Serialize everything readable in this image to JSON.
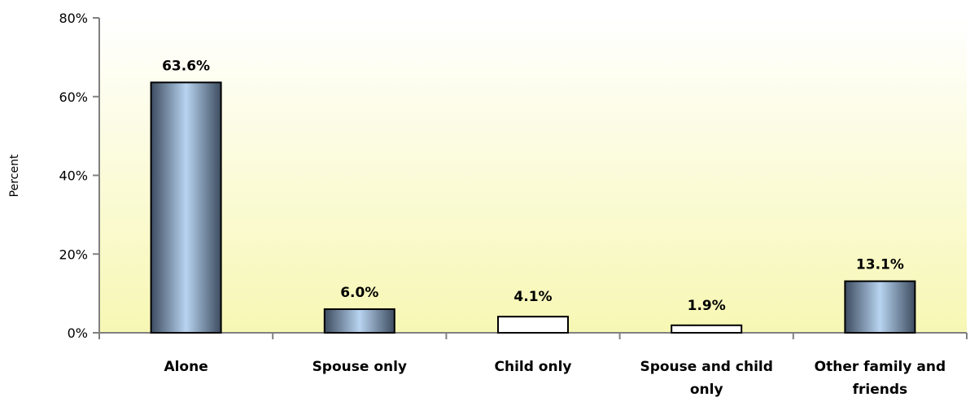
{
  "chart_data": {
    "type": "bar",
    "title": "",
    "xlabel": "",
    "ylabel": "Percent",
    "categories": [
      "Alone",
      "Spouse only",
      "Child only",
      "Spouse and child only",
      "Other family and friends"
    ],
    "category_label_lines": [
      [
        "Alone"
      ],
      [
        "Spouse only"
      ],
      [
        "Child only"
      ],
      [
        "Spouse and child",
        "only"
      ],
      [
        "Other family and",
        "friends"
      ]
    ],
    "values": [
      63.6,
      6.0,
      4.1,
      1.9,
      13.1
    ],
    "value_labels": [
      "63.6%",
      "6.0%",
      "4.1%",
      "1.9%",
      "13.1%"
    ],
    "bar_styles": [
      "gradient",
      "gradient",
      "plain",
      "plain",
      "gradient"
    ],
    "ylim": [
      0,
      80
    ],
    "y_ticks": [
      0,
      20,
      40,
      60,
      80
    ],
    "y_tick_labels": [
      "0%",
      "20%",
      "40%",
      "60%",
      "80%"
    ],
    "grid": false,
    "legend": "none",
    "colors": {
      "bar_light": "#b8d4f0",
      "bar_dark": "#3d4c60",
      "plain_bar": "#ffffff",
      "bar_stroke": "#000000",
      "plot_bg_top": "#ffffff",
      "plot_bg_bottom": "#f7f7b4",
      "axis": "#808080"
    }
  }
}
